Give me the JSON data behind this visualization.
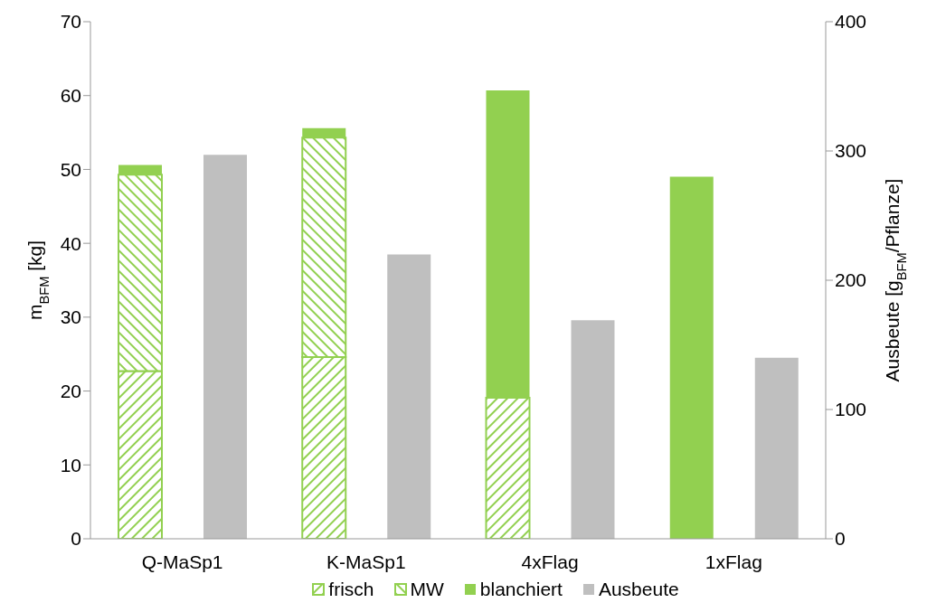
{
  "chart_data": {
    "type": "bar",
    "stacked": true,
    "categories": [
      "Q-MaSp1",
      "K-MaSp1",
      "4xFlag",
      "1xFlag"
    ],
    "ylabel": "m$_{BFM}$ [kg]",
    "y2label": "Ausbeute [g$_{BFM}$/Pflanze]",
    "series": [
      {
        "name": "frisch",
        "color": "#92d050",
        "values": [
          22.7,
          24.6,
          19.1,
          null
        ]
      },
      {
        "name": "MW",
        "color": "#92d050",
        "values": [
          26.6,
          29.7,
          null,
          null
        ]
      },
      {
        "name": "blanchiert",
        "color": "#92d050",
        "values": [
          1.3,
          1.3,
          41.6,
          49.0
        ]
      },
      {
        "name": "Ausbeute",
        "color": "#bfbfbf",
        "axis": "y2",
        "values": [
          297,
          220,
          169,
          140
        ]
      }
    ],
    "ylim": [
      0,
      70
    ],
    "yticks": [
      0,
      10,
      20,
      30,
      40,
      50,
      60,
      70
    ],
    "y2lim": [
      0,
      400
    ],
    "y2ticks": [
      0,
      100,
      200,
      300,
      400
    ],
    "grid": false,
    "legend": "bottom"
  }
}
